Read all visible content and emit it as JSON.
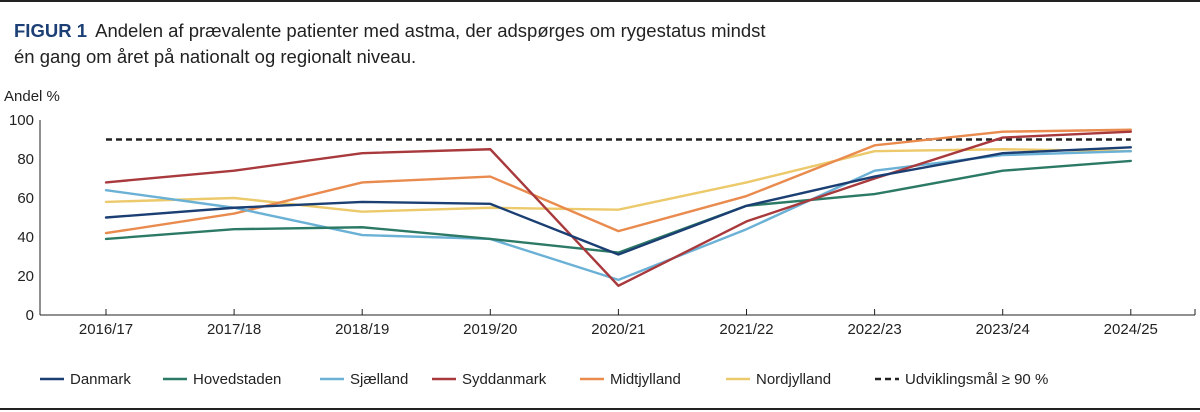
{
  "figure": {
    "label": "FIGUR 1",
    "title_line1": "Andelen af prævalente patienter med astma, der adspørges om rygestatus mindst",
    "title_line2": "én gang om året på nationalt og regionalt niveau."
  },
  "chart_data": {
    "type": "line",
    "ylabel": "Andel %",
    "xlabel": "",
    "ylim": [
      0,
      100
    ],
    "yticks": [
      0,
      20,
      40,
      60,
      80,
      100
    ],
    "grid": false,
    "legend_position": "bottom",
    "categories": [
      "2016/17",
      "2017/18",
      "2018/19",
      "2019/20",
      "2020/21",
      "2021/22",
      "2022/23",
      "2023/24",
      "2024/25"
    ],
    "series": [
      {
        "name": "Danmark",
        "color": "#1b3f73",
        "dashed": false,
        "values": [
          50,
          55,
          58,
          57,
          31,
          56,
          71,
          83,
          86
        ]
      },
      {
        "name": "Hovedstaden",
        "color": "#2c7a65",
        "dashed": false,
        "values": [
          39,
          44,
          45,
          39,
          32,
          56,
          62,
          74,
          79
        ]
      },
      {
        "name": "Sjælland",
        "color": "#6bb1d6",
        "dashed": false,
        "values": [
          64,
          55,
          41,
          39,
          18,
          44,
          74,
          82,
          84
        ]
      },
      {
        "name": "Syddanmark",
        "color": "#a8393c",
        "dashed": false,
        "values": [
          68,
          74,
          83,
          85,
          15,
          48,
          70,
          91,
          94
        ]
      },
      {
        "name": "Midtjylland",
        "color": "#e98b4e",
        "dashed": false,
        "values": [
          42,
          52,
          68,
          71,
          43,
          61,
          87,
          94,
          95
        ]
      },
      {
        "name": "Nordjylland",
        "color": "#ecc96a",
        "dashed": false,
        "values": [
          58,
          60,
          53,
          55,
          54,
          68,
          84,
          85,
          84
        ]
      },
      {
        "name": "Udviklingsmål ≥ 90 %",
        "color": "#222222",
        "dashed": true,
        "values": [
          90,
          90,
          90,
          90,
          90,
          90,
          90,
          90,
          90
        ]
      }
    ]
  }
}
